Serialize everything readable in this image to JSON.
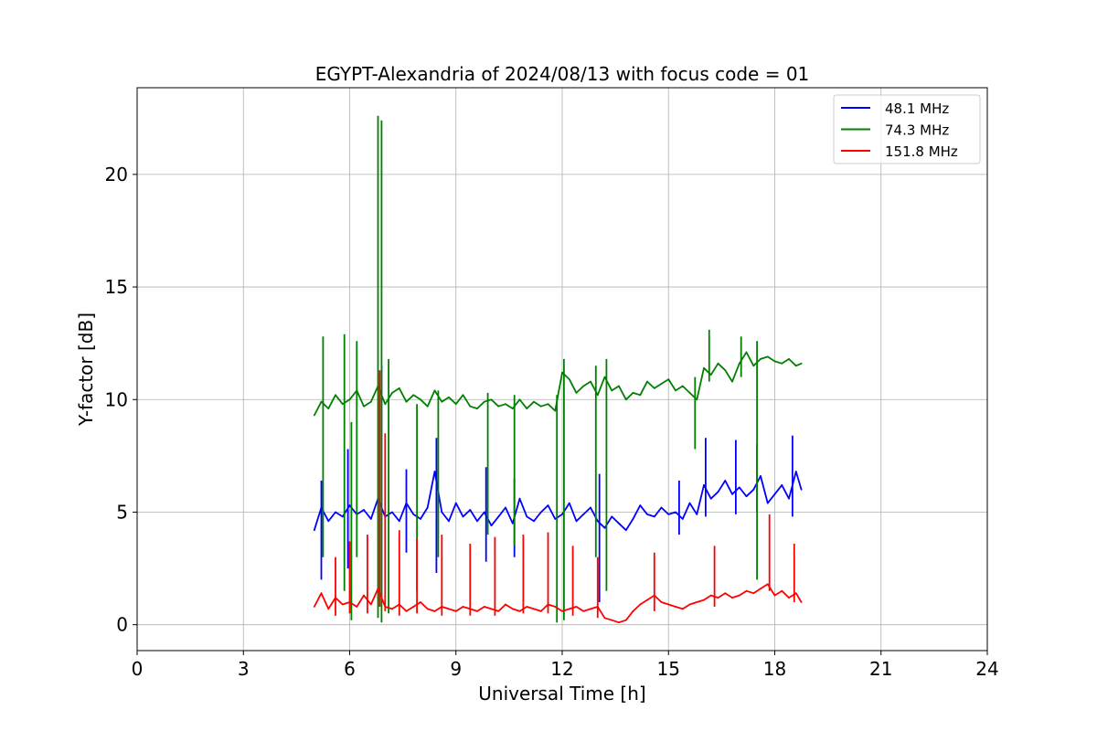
{
  "chart_data": {
    "type": "line",
    "title": "EGYPT-Alexandria of 2024/08/13 with focus code = 01",
    "xlabel": "Universal Time [h]",
    "ylabel": "Y-factor [dB]",
    "xlim": [
      0,
      24
    ],
    "ylim": [
      -1.15,
      23.85
    ],
    "xticks": [
      0,
      3,
      6,
      9,
      12,
      15,
      18,
      21,
      24
    ],
    "xtick_labels": [
      "0",
      "3",
      "6",
      "9",
      "12",
      "15",
      "18",
      "21",
      "24"
    ],
    "yticks": [
      0,
      5,
      10,
      15,
      20
    ],
    "ytick_labels": [
      "0",
      "5",
      "10",
      "15",
      "20"
    ],
    "grid": true,
    "legend_position": "top-right",
    "series": [
      {
        "name": "48.1 MHz",
        "color": "#0000ff",
        "x": [
          5.0,
          5.2,
          5.4,
          5.6,
          5.8,
          6.0,
          6.2,
          6.4,
          6.6,
          6.8,
          7.0,
          7.2,
          7.4,
          7.6,
          7.8,
          8.0,
          8.2,
          8.4,
          8.6,
          8.8,
          9.0,
          9.2,
          9.4,
          9.6,
          9.8,
          10.0,
          10.2,
          10.4,
          10.6,
          10.8,
          11.0,
          11.2,
          11.4,
          11.6,
          11.8,
          12.0,
          12.2,
          12.4,
          12.6,
          12.8,
          13.0,
          13.2,
          13.4,
          13.6,
          13.8,
          14.0,
          14.2,
          14.4,
          14.6,
          14.8,
          15.0,
          15.2,
          15.4,
          15.6,
          15.8,
          16.0,
          16.2,
          16.4,
          16.6,
          16.8,
          17.0,
          17.2,
          17.4,
          17.6,
          17.8,
          18.0,
          18.2,
          18.4,
          18.6,
          18.75
        ],
        "y": [
          4.2,
          5.2,
          4.6,
          5.0,
          4.8,
          5.3,
          4.9,
          5.1,
          4.7,
          5.6,
          4.8,
          5.0,
          4.6,
          5.4,
          4.9,
          4.7,
          5.2,
          6.8,
          5.0,
          4.6,
          5.4,
          4.8,
          5.1,
          4.6,
          5.0,
          4.4,
          4.8,
          5.2,
          4.5,
          5.6,
          4.8,
          4.6,
          5.0,
          5.3,
          4.7,
          4.9,
          5.4,
          4.6,
          4.9,
          5.2,
          4.6,
          4.3,
          4.8,
          4.5,
          4.2,
          4.7,
          5.3,
          4.9,
          4.8,
          5.2,
          4.9,
          5.0,
          4.7,
          5.4,
          4.9,
          6.2,
          5.6,
          5.9,
          6.4,
          5.8,
          6.1,
          5.7,
          6.0,
          6.6,
          5.4,
          5.8,
          6.2,
          5.6,
          6.8,
          6.0
        ]
      },
      {
        "name": "74.3 MHz",
        "color": "#008000",
        "x": [
          5.0,
          5.2,
          5.4,
          5.6,
          5.8,
          6.0,
          6.2,
          6.4,
          6.6,
          6.8,
          7.0,
          7.2,
          7.4,
          7.6,
          7.8,
          8.0,
          8.2,
          8.4,
          8.6,
          8.8,
          9.0,
          9.2,
          9.4,
          9.6,
          9.8,
          10.0,
          10.2,
          10.4,
          10.6,
          10.8,
          11.0,
          11.2,
          11.4,
          11.6,
          11.8,
          12.0,
          12.2,
          12.4,
          12.6,
          12.8,
          13.0,
          13.2,
          13.4,
          13.6,
          13.8,
          14.0,
          14.2,
          14.4,
          14.6,
          14.8,
          15.0,
          15.2,
          15.4,
          15.6,
          15.8,
          16.0,
          16.2,
          16.4,
          16.6,
          16.8,
          17.0,
          17.2,
          17.4,
          17.6,
          17.8,
          18.0,
          18.2,
          18.4,
          18.6,
          18.75
        ],
        "y": [
          9.3,
          9.9,
          9.6,
          10.2,
          9.8,
          10.0,
          10.4,
          9.7,
          9.9,
          10.6,
          9.8,
          10.3,
          10.5,
          9.9,
          10.2,
          10.0,
          9.7,
          10.4,
          9.9,
          10.1,
          9.8,
          10.2,
          9.7,
          9.6,
          9.9,
          10.0,
          9.7,
          9.8,
          9.6,
          10.0,
          9.6,
          9.9,
          9.7,
          9.8,
          9.5,
          11.2,
          10.9,
          10.3,
          10.6,
          10.8,
          10.2,
          11.0,
          10.4,
          10.6,
          10.0,
          10.3,
          10.2,
          10.8,
          10.5,
          10.7,
          10.9,
          10.4,
          10.6,
          10.3,
          10.0,
          11.4,
          11.1,
          11.6,
          11.3,
          10.8,
          11.6,
          12.1,
          11.5,
          11.8,
          11.9,
          11.7,
          11.6,
          11.8,
          11.5,
          11.6
        ]
      },
      {
        "name": "151.8 MHz",
        "color": "#ff0000",
        "x": [
          5.0,
          5.2,
          5.4,
          5.6,
          5.8,
          6.0,
          6.2,
          6.4,
          6.6,
          6.8,
          7.0,
          7.2,
          7.4,
          7.6,
          7.8,
          8.0,
          8.2,
          8.4,
          8.6,
          8.8,
          9.0,
          9.2,
          9.4,
          9.6,
          9.8,
          10.0,
          10.2,
          10.4,
          10.6,
          10.8,
          11.0,
          11.2,
          11.4,
          11.6,
          11.8,
          12.0,
          12.2,
          12.4,
          12.6,
          12.8,
          13.0,
          13.2,
          13.4,
          13.6,
          13.8,
          14.0,
          14.2,
          14.4,
          14.6,
          14.8,
          15.0,
          15.2,
          15.4,
          15.6,
          15.8,
          16.0,
          16.2,
          16.4,
          16.6,
          16.8,
          17.0,
          17.2,
          17.4,
          17.6,
          17.8,
          18.0,
          18.2,
          18.4,
          18.6,
          18.75
        ],
        "y": [
          0.8,
          1.4,
          0.7,
          1.2,
          0.9,
          1.0,
          0.8,
          1.3,
          0.9,
          1.6,
          0.8,
          0.7,
          0.9,
          0.6,
          0.8,
          1.0,
          0.7,
          0.6,
          0.8,
          0.7,
          0.6,
          0.8,
          0.7,
          0.6,
          0.8,
          0.7,
          0.6,
          0.9,
          0.7,
          0.6,
          0.8,
          0.7,
          0.6,
          0.9,
          0.8,
          0.6,
          0.7,
          0.8,
          0.6,
          0.7,
          0.8,
          0.3,
          0.2,
          0.1,
          0.2,
          0.6,
          0.9,
          1.1,
          1.3,
          1.0,
          0.9,
          0.8,
          0.7,
          0.9,
          1.0,
          1.1,
          1.3,
          1.2,
          1.4,
          1.2,
          1.3,
          1.5,
          1.4,
          1.6,
          1.8,
          1.3,
          1.5,
          1.2,
          1.4,
          1.0
        ]
      }
    ],
    "spikes": [
      {
        "series": "48.1 MHz",
        "segments": [
          [
            5.2,
            2.0,
            6.4
          ],
          [
            5.95,
            2.5,
            7.8
          ],
          [
            6.9,
            1.0,
            11.5
          ],
          [
            7.6,
            3.2,
            6.9
          ],
          [
            8.45,
            2.3,
            8.3
          ],
          [
            9.85,
            2.8,
            7.0
          ],
          [
            10.65,
            3.0,
            6.5
          ],
          [
            13.05,
            1.0,
            6.7
          ],
          [
            15.3,
            4.0,
            6.4
          ],
          [
            16.05,
            4.8,
            8.3
          ],
          [
            16.9,
            4.9,
            8.2
          ],
          [
            17.5,
            5.0,
            8.0
          ],
          [
            18.5,
            4.8,
            8.4
          ]
        ]
      },
      {
        "series": "74.3 MHz",
        "segments": [
          [
            5.25,
            3.0,
            12.8
          ],
          [
            5.85,
            1.5,
            12.9
          ],
          [
            6.05,
            0.2,
            9.0
          ],
          [
            6.2,
            3.0,
            12.6
          ],
          [
            6.8,
            0.3,
            22.6
          ],
          [
            6.9,
            0.1,
            22.4
          ],
          [
            7.1,
            0.5,
            11.8
          ],
          [
            7.9,
            1.5,
            9.8
          ],
          [
            8.5,
            3.0,
            10.4
          ],
          [
            9.9,
            4.0,
            10.3
          ],
          [
            10.65,
            3.5,
            10.2
          ],
          [
            11.85,
            0.1,
            10.2
          ],
          [
            12.05,
            0.2,
            11.8
          ],
          [
            12.95,
            3.0,
            11.5
          ],
          [
            13.25,
            1.5,
            11.8
          ],
          [
            15.75,
            7.8,
            11.0
          ],
          [
            16.15,
            13.1,
            10.8
          ],
          [
            17.5,
            2.0,
            12.6
          ],
          [
            17.05,
            12.8,
            11.0
          ]
        ]
      },
      {
        "series": "151.8 MHz",
        "segments": [
          [
            5.6,
            0.4,
            3.0
          ],
          [
            6.0,
            0.5,
            3.7
          ],
          [
            6.5,
            0.5,
            4.0
          ],
          [
            6.85,
            0.8,
            11.3
          ],
          [
            7.0,
            0.6,
            8.5
          ],
          [
            7.4,
            0.4,
            4.2
          ],
          [
            7.9,
            0.5,
            3.8
          ],
          [
            8.6,
            0.4,
            4.0
          ],
          [
            9.4,
            0.4,
            3.6
          ],
          [
            10.1,
            0.4,
            3.9
          ],
          [
            10.9,
            0.5,
            4.0
          ],
          [
            11.6,
            0.5,
            4.1
          ],
          [
            12.3,
            0.4,
            3.5
          ],
          [
            13.0,
            0.3,
            3.0
          ],
          [
            14.6,
            0.6,
            3.2
          ],
          [
            16.3,
            0.8,
            3.5
          ],
          [
            17.85,
            1.5,
            4.9
          ],
          [
            18.55,
            1.0,
            3.6
          ]
        ]
      }
    ]
  }
}
